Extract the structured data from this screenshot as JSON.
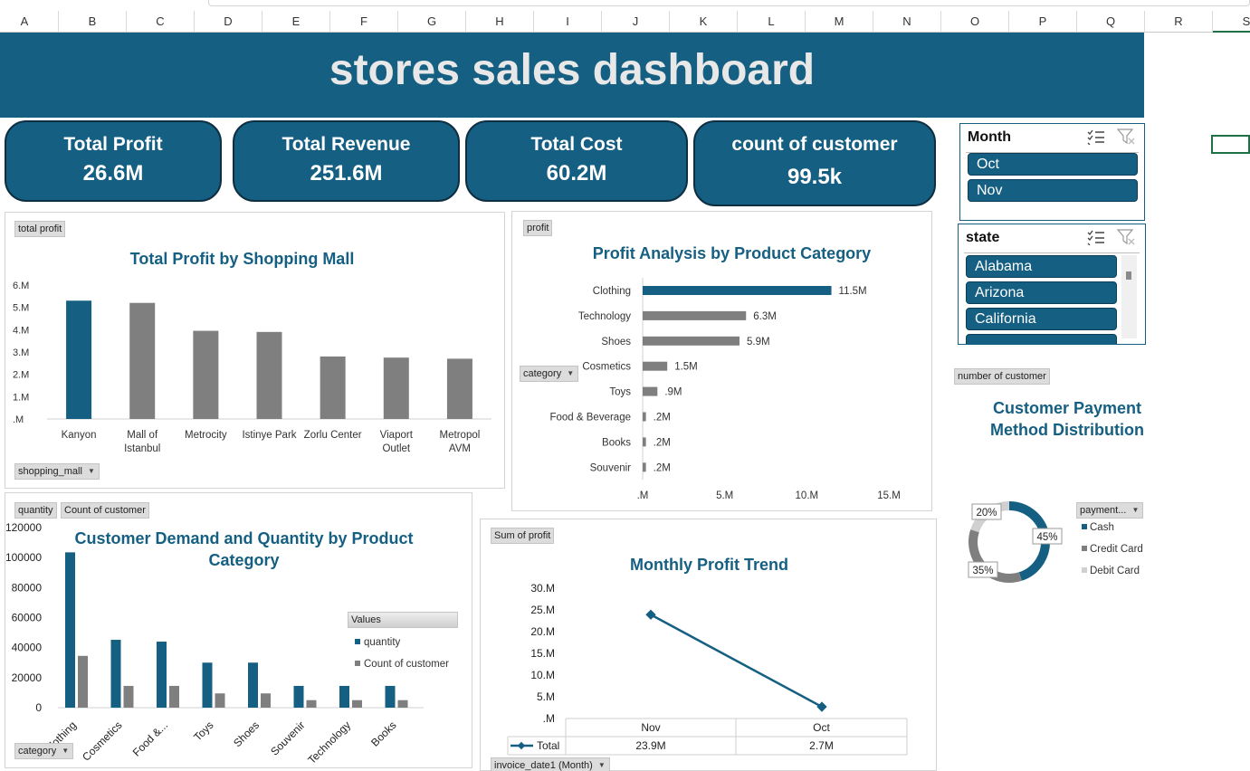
{
  "spreadsheet": {
    "columns": [
      "A",
      "B",
      "C",
      "D",
      "E",
      "F",
      "G",
      "H",
      "I",
      "J",
      "K",
      "L",
      "M",
      "N",
      "O",
      "P",
      "Q",
      "R",
      "S"
    ]
  },
  "dashboard": {
    "title": "stores sales dashboard",
    "kpis": [
      {
        "label": "Total Profit",
        "value": "26.6M"
      },
      {
        "label": "Total Revenue",
        "value": "251.6M"
      },
      {
        "label": "Total Cost",
        "value": "60.2M"
      },
      {
        "label": "count of customer",
        "value": "99.5k"
      }
    ]
  },
  "slicers": {
    "month": {
      "title": "Month",
      "items": [
        "Oct",
        "Nov"
      ]
    },
    "state": {
      "title": "state",
      "items": [
        "Alabama",
        "Arizona",
        "California"
      ]
    }
  },
  "colors": {
    "primary": "#155f82",
    "gray": "#7f7f7f",
    "light_gray": "#d0d0d0",
    "banner_text": "#e8e8e8"
  },
  "chart_data": [
    {
      "id": "mall",
      "type": "bar",
      "title": "Total Profit by Shopping Mall",
      "field_buttons": {
        "values": "total profit",
        "axis": "shopping_mall"
      },
      "categories": [
        "Kanyon",
        "Mall of Istanbul",
        "Metrocity",
        "Istinye Park",
        "Zorlu Center",
        "Viaport Outlet",
        "Metropol AVM"
      ],
      "category_lines": [
        [
          "Kanyon"
        ],
        [
          "Mall of",
          "Istanbul"
        ],
        [
          "Metrocity"
        ],
        [
          "Istinye Park"
        ],
        [
          "Zorlu Center"
        ],
        [
          "Viaport",
          "Outlet"
        ],
        [
          "Metropol",
          "AVM"
        ]
      ],
      "values": [
        5.3,
        5.2,
        3.95,
        3.9,
        2.8,
        2.75,
        2.7
      ],
      "ylim": [
        0,
        6
      ],
      "yticks": [
        ".M",
        "1.M",
        "2.M",
        "3.M",
        "4.M",
        "5.M",
        "6.M"
      ],
      "highlight_index": 0
    },
    {
      "id": "category",
      "type": "bar",
      "orientation": "horizontal",
      "title": "Profit Analysis by Product Category",
      "field_buttons": {
        "values": "profit",
        "axis": "category"
      },
      "categories": [
        "Clothing",
        "Technology",
        "Shoes",
        "Cosmetics",
        "Toys",
        "Food & Beverage",
        "Books",
        "Souvenir"
      ],
      "values": [
        11.5,
        6.3,
        5.9,
        1.5,
        0.9,
        0.2,
        0.2,
        0.2
      ],
      "data_labels": [
        "11.5M",
        "6.3M",
        "5.9M",
        "1.5M",
        ".9M",
        ".2M",
        ".2M",
        ".2M"
      ],
      "xlim": [
        0,
        15
      ],
      "xticks": [
        ".M",
        "5.M",
        "10.M",
        "15.M"
      ],
      "highlight_index": 0
    },
    {
      "id": "demand",
      "type": "bar",
      "title": "Customer Demand and Quantity by Product Category",
      "title_lines": [
        "Customer Demand and Quantity by Product",
        "Category"
      ],
      "field_buttons": {
        "values1": "quantity",
        "values2": "Count of customer",
        "axis": "category"
      },
      "legend_title": "Values",
      "categories": [
        "Clothing",
        "Cosmetics",
        "Food &...",
        "Toys",
        "Shoes",
        "Souvenir",
        "Technology",
        "Books"
      ],
      "category_display": [
        "Clothing",
        "Cosmetics",
        "Food &...",
        "Toys",
        "Shoes",
        "Souvenir",
        "Technology",
        "Books"
      ],
      "series": [
        {
          "name": "quantity",
          "values": [
            103500,
            45200,
            44000,
            30000,
            30000,
            14500,
            14500,
            14500
          ]
        },
        {
          "name": "Count of customer",
          "values": [
            34500,
            14500,
            14500,
            9500,
            9500,
            5000,
            5000,
            5000
          ]
        }
      ],
      "ylim": [
        0,
        120000
      ],
      "yticks": [
        "0",
        "20000",
        "40000",
        "60000",
        "80000",
        "100000",
        "120000"
      ]
    },
    {
      "id": "trend",
      "type": "line",
      "title": "Monthly Profit Trend",
      "field_buttons": {
        "values": "Sum of profit",
        "axis": "invoice_date1 (Month)"
      },
      "x": [
        "Nov",
        "Oct"
      ],
      "series": [
        {
          "name": "Total",
          "values": [
            23.9,
            2.7
          ]
        }
      ],
      "value_labels": [
        "23.9M",
        "2.7M"
      ],
      "ylim": [
        0,
        30
      ],
      "yticks": [
        ".M",
        "5.M",
        "10.M",
        "15.M",
        "20.M",
        "25.M",
        "30.M"
      ]
    },
    {
      "id": "payment",
      "type": "pie",
      "title": "Customer Payment Method Distribution",
      "title_lines": [
        "Customer Payment",
        "Method Distribution"
      ],
      "field_buttons": {
        "values": "number of customer",
        "legend": "payment..."
      },
      "categories": [
        "Cash",
        "Credit Card",
        "Debit Card"
      ],
      "values": [
        45,
        35,
        20
      ],
      "data_labels": [
        "45%",
        "35%",
        "20%"
      ],
      "colors": [
        "#155f82",
        "#7f7f7f",
        "#d0d0d0"
      ],
      "legend_position": "right"
    }
  ]
}
